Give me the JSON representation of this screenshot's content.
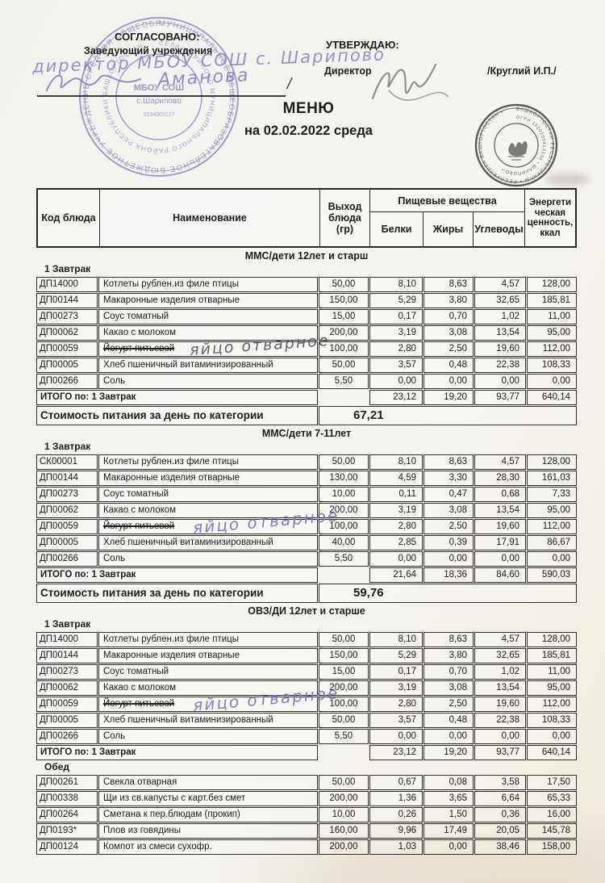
{
  "header": {
    "agreed": "СОГЛАСОВАНО:",
    "agreed_role": "Заведующий  учреждения",
    "agreed_handwriting": "директор МБОУ СОШ с. Шарипово",
    "agreed_signature_name": "Аманова",
    "agreed_slash": "/",
    "approve": "УТВЕРЖДАЮ:",
    "approve_role": "Директор",
    "approve_name": "/Круглий И.П./",
    "title": "МЕНЮ",
    "date_line": "на 02.02.2022  среда"
  },
  "table_header": {
    "code": "Код блюда",
    "name": "Наименование",
    "out": "Выход блюда (гр)",
    "nutrients": "Пищевые вещества",
    "protein": "Белки",
    "fat": "Жиры",
    "carbs": "Углеводы",
    "energy": "Энергети ческая ценность, ккал"
  },
  "stamps": {
    "left_stamp_icon": "round-seal-blue",
    "right_stamp_icon": "round-seal-dark",
    "signature_icon": "director-signature",
    "left": {
      "ring1": "МУНИЦИПАЛЬНОЕ ОБЩЕОБРАЗОВАТЕЛЬНОЕ БЮДЖЕТНОЕ УЧРЕЖДЕНИЕ СРЕДНЯЯ ОБЩЕОБРАЗОВАТЕЛЬНАЯ ШКОЛА ",
      "ring2": "СЕЛА ШАРИПОВО МУНИЦИПАЛЬНОГО РАЙОНА РЕСПУБЛИКИ БАШКОРТОСТАН ",
      "center1": "МБОУ СОШ",
      "center2": "с.Шарипово",
      "center3": "0234003127"
    },
    "right": {
      "ring1": "БАШКОРТОСТАН РЕСПУБЛИКАҺЫ • РЕСПУБЛИКА БАШКОРТОСТАН • ",
      "ring2": "ОГРН 1020201413136 • ШАРИПОВО • "
    }
  },
  "sections": [
    {
      "category": "ММС/дети 12лет и старш",
      "meal": "1 Завтрак",
      "rows": [
        {
          "code": "ДП14000",
          "name": "Котлеты рублен.из филе птицы",
          "out": "50,00",
          "protein": "8,10",
          "fat": "8,63",
          "carbs": "4,57",
          "energy": "128,00"
        },
        {
          "code": "ДП00144",
          "name": "Макаронные изделия отварные",
          "out": "150,00",
          "protein": "5,29",
          "fat": "3,80",
          "carbs": "32,65",
          "energy": "185,81"
        },
        {
          "code": "ДП00273",
          "name": "Соус томатный",
          "out": "15,00",
          "protein": "0,17",
          "fat": "0,70",
          "carbs": "1,02",
          "energy": "11,00"
        },
        {
          "code": "ДП00062",
          "name": "Какао с молоком",
          "out": "200,00",
          "protein": "3,19",
          "fat": "3,08",
          "carbs": "13,54",
          "energy": "95,00"
        },
        {
          "code": "ДП00059",
          "name": "Йогурт питьевой",
          "struck": true,
          "handwriting": "яйцо отварное",
          "hw_color": "dark",
          "out": "100,00",
          "protein": "2,80",
          "fat": "2,50",
          "carbs": "19,60",
          "energy": "112,00"
        },
        {
          "code": "ДП00005",
          "name": "Хлеб пшеничный витаминизированный",
          "out": "50,00",
          "protein": "3,57",
          "fat": "0,48",
          "carbs": "22,38",
          "energy": "108,33"
        },
        {
          "code": "ДП00266",
          "name": "Соль",
          "out": "5,50",
          "protein": "0,00",
          "fat": "0,00",
          "carbs": "0,00",
          "energy": "0,00"
        }
      ],
      "total": {
        "label": "ИТОГО по: 1 Завтрак",
        "protein": "23,12",
        "fat": "19,20",
        "carbs": "93,77",
        "energy": "640,14"
      },
      "cost": {
        "label": "Стоимость питания за день по категории",
        "value": "67,21"
      }
    },
    {
      "category": "ММС/дети 7-11лет",
      "meal": "1 Завтрак",
      "rows": [
        {
          "code": "СК00001",
          "name": "Котлеты рублен.из филе птицы",
          "out": "50,00",
          "protein": "8,10",
          "fat": "8,63",
          "carbs": "4,57",
          "energy": "128,00"
        },
        {
          "code": "ДП00144",
          "name": "Макаронные изделия отварные",
          "out": "130,00",
          "protein": "4,59",
          "fat": "3,30",
          "carbs": "28,30",
          "energy": "161,03"
        },
        {
          "code": "ДП00273",
          "name": "Соус томатный",
          "out": "10,00",
          "protein": "0,11",
          "fat": "0,47",
          "carbs": "0,68",
          "energy": "7,33"
        },
        {
          "code": "ДП00062",
          "name": "Какао с молоком",
          "out": "200,00",
          "protein": "3,19",
          "fat": "3,08",
          "carbs": "13,54",
          "energy": "95,00"
        },
        {
          "code": "ДП00059",
          "name": "Йогурт питьевой",
          "struck": true,
          "handwriting": "яйцо отварное",
          "hw_color": "purple",
          "out": "100,00",
          "protein": "2,80",
          "fat": "2,50",
          "carbs": "19,60",
          "energy": "112,00"
        },
        {
          "code": "ДП00005",
          "name": "Хлеб пшеничный витаминизированный",
          "out": "40,00",
          "protein": "2,85",
          "fat": "0,39",
          "carbs": "17,91",
          "energy": "86,67"
        },
        {
          "code": "ДП00266",
          "name": "Соль",
          "out": "5,50",
          "protein": "0,00",
          "fat": "0,00",
          "carbs": "0,00",
          "energy": "0,00"
        }
      ],
      "total": {
        "label": "ИТОГО по: 1 Завтрак",
        "protein": "21,64",
        "fat": "18,36",
        "carbs": "84,60",
        "energy": "590,03"
      },
      "cost": {
        "label": "Стоимость питания за день по категории",
        "value": "59,76"
      }
    },
    {
      "category": "ОВЗ/ДИ 12лет и старше",
      "meal": "1 Завтрак",
      "rows": [
        {
          "code": "ДП14000",
          "name": "Котлеты рублен.из филе птицы",
          "out": "50,00",
          "protein": "8,10",
          "fat": "8,63",
          "carbs": "4,57",
          "energy": "128,00"
        },
        {
          "code": "ДП00144",
          "name": "Макаронные изделия отварные",
          "out": "150,00",
          "protein": "5,29",
          "fat": "3,80",
          "carbs": "32,65",
          "energy": "185,81"
        },
        {
          "code": "ДП00273",
          "name": "Соус томатный",
          "out": "15,00",
          "protein": "0,17",
          "fat": "0,70",
          "carbs": "1,02",
          "energy": "11,00"
        },
        {
          "code": "ДП00062",
          "name": "Какао с молоком",
          "out": "200,00",
          "protein": "3,19",
          "fat": "3,08",
          "carbs": "13,54",
          "energy": "95,00"
        },
        {
          "code": "ДП00059",
          "name": "Йогурт питьевой",
          "struck": true,
          "handwriting": "яйцо отварное",
          "hw_color": "purple",
          "out": "100,00",
          "protein": "2,80",
          "fat": "2,50",
          "carbs": "19,60",
          "energy": "112,00"
        },
        {
          "code": "ДП00005",
          "name": "Хлеб пшеничный витаминизированный",
          "out": "50,00",
          "protein": "3,57",
          "fat": "0,48",
          "carbs": "22,38",
          "energy": "108,33"
        },
        {
          "code": "ДП00266",
          "name": "Соль",
          "out": "5,50",
          "protein": "0,00",
          "fat": "0,00",
          "carbs": "0,00",
          "energy": "0,00"
        }
      ],
      "total": {
        "label": "ИТОГО по: 1 Завтрак",
        "protein": "23,12",
        "fat": "19,20",
        "carbs": "93,77",
        "energy": "640,14"
      }
    },
    {
      "category": "",
      "meal": "Обед",
      "rows": [
        {
          "code": "ДП00261",
          "name": "Свекла отварная",
          "out": "50,00",
          "protein": "0,67",
          "fat": "0,08",
          "carbs": "3,58",
          "energy": "17,50"
        },
        {
          "code": "ДП00338",
          "name": "Щи из св.капусты с карт.без смет",
          "out": "200,00",
          "protein": "1,36",
          "fat": "3,65",
          "carbs": "6,64",
          "energy": "65,33"
        },
        {
          "code": "ДП00264",
          "name": "Сметана к пер.блюдам (прокип)",
          "out": "10,00",
          "protein": "0,26",
          "fat": "1,50",
          "carbs": "0,36",
          "energy": "16,00"
        },
        {
          "code": "ДП0193*",
          "name": "Плов из говядины",
          "out": "160,00",
          "protein": "9,96",
          "fat": "17,49",
          "carbs": "20,05",
          "energy": "145,78"
        },
        {
          "code": "ДП00124",
          "name": "Компот из смеси сухофр.",
          "out": "200,00",
          "protein": "1,03",
          "fat": "0,00",
          "carbs": "38,46",
          "energy": "158,00"
        }
      ]
    }
  ]
}
